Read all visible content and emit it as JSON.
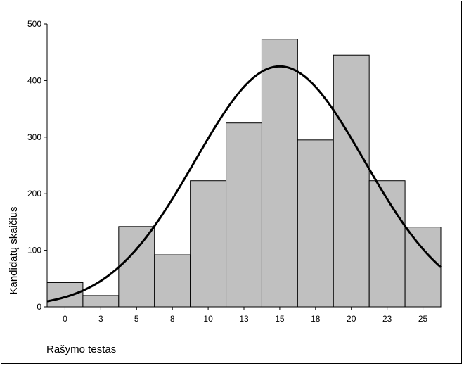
{
  "chart_data": {
    "type": "bar",
    "subtype": "histogram-with-normal-curve",
    "title": "",
    "xlabel": "Rašymo testas",
    "ylabel": "Kandidatų skaičius",
    "categories": [
      "0",
      "3",
      "5",
      "8",
      "10",
      "13",
      "15",
      "18",
      "20",
      "23",
      "25"
    ],
    "values": [
      43,
      20,
      142,
      92,
      223,
      325,
      473,
      295,
      445,
      223,
      141
    ],
    "ylim": [
      0,
      500
    ],
    "yticks": [
      0,
      100,
      200,
      300,
      400,
      500
    ],
    "grid": false,
    "legend": "none",
    "curve": {
      "type": "normal",
      "peak_value": 425,
      "peak_category_index": 6
    },
    "colors": {
      "bar_fill": "#c0c0c0",
      "bar_stroke": "#000000",
      "curve": "#000000"
    }
  }
}
